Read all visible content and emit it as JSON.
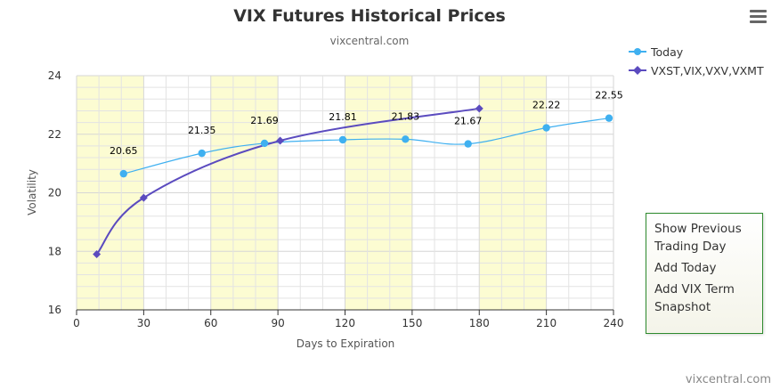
{
  "colors": {
    "today": "#3fb0f0",
    "history": "#5b4bbf",
    "band": "#fcfcd2",
    "grid": "#e3e3e3",
    "menu_border": "#2e8b2e"
  },
  "menu": {
    "icon": "hamburger-menu-icon",
    "items": [
      "Show Previous Trading Day",
      "Add Today",
      "Add VIX Term Snapshot"
    ]
  },
  "credits": "vixcentral.com",
  "chart_data": {
    "type": "line",
    "title": "VIX Futures Historical Prices",
    "subtitle": "vixcentral.com",
    "xlabel": "Days to Expiration",
    "ylabel": "Volatility",
    "xlim": [
      0,
      240
    ],
    "ylim": [
      16,
      24
    ],
    "x_ticks": [
      0,
      30,
      60,
      90,
      120,
      150,
      180,
      210,
      240
    ],
    "y_ticks": [
      16,
      18,
      20,
      22,
      24
    ],
    "shaded_x_bands": [
      [
        0,
        30
      ],
      [
        60,
        90
      ],
      [
        120,
        150
      ],
      [
        180,
        210
      ]
    ],
    "grid": true,
    "legend_position": "top-right",
    "series": [
      {
        "name": "Today",
        "marker": "circle",
        "x": [
          21,
          56,
          84,
          119,
          147,
          175,
          210,
          238
        ],
        "y": [
          20.65,
          21.35,
          21.69,
          21.81,
          21.83,
          21.67,
          22.22,
          22.55
        ],
        "labels": [
          "20.65",
          "21.35",
          "21.69",
          "21.81",
          "21.83",
          "21.67",
          "22.22",
          "22.55"
        ]
      },
      {
        "name": "VXST,VIX,VXV,VXMT",
        "marker": "diamond",
        "x": [
          9,
          30,
          91,
          180
        ],
        "y": [
          17.9,
          19.83,
          21.78,
          22.88
        ]
      }
    ]
  }
}
